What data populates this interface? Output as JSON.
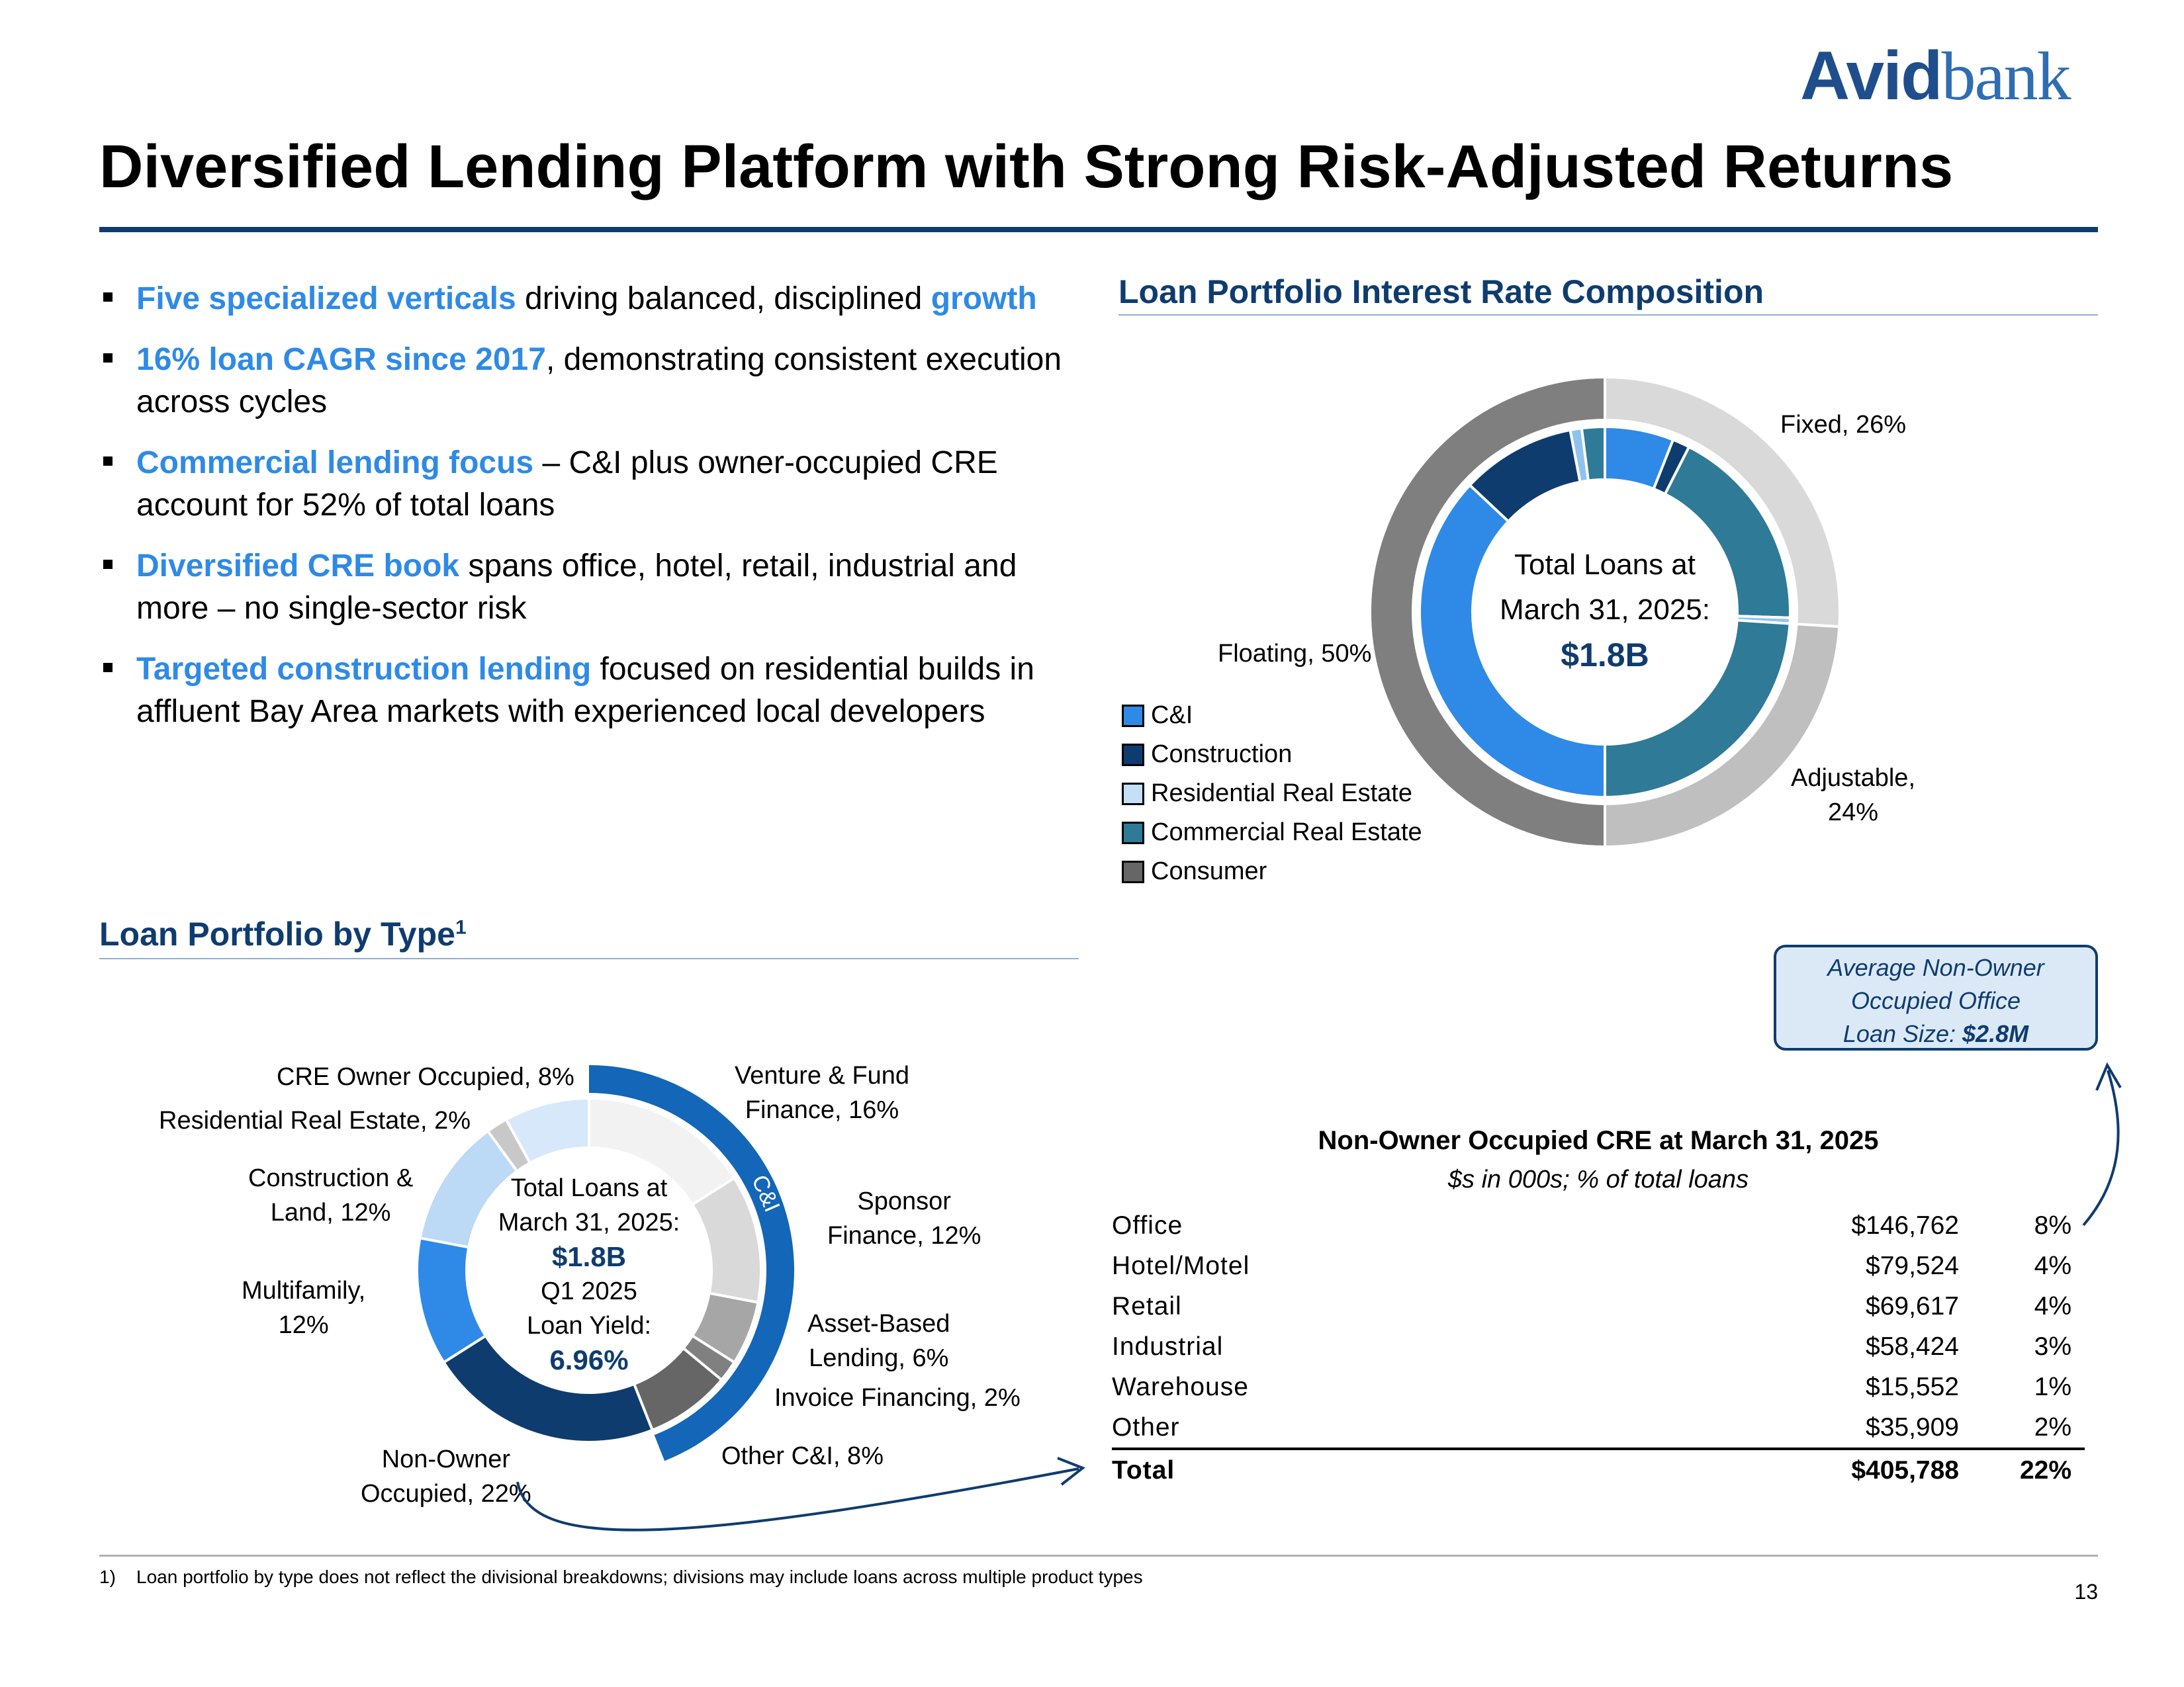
{
  "logo": {
    "part1": "Avid",
    "part2": "bank"
  },
  "title": "Diversified Lending Platform with Strong Risk-Adjusted Returns",
  "bullets": [
    {
      "hl": "Five specialized verticals",
      "text": " driving balanced, disciplined ",
      "hl2": "growth"
    },
    {
      "hl": "16% loan CAGR since 2017",
      "text": ", demonstrating consistent execution across cycles"
    },
    {
      "hl": "Commercial lending focus",
      "text": " – C&I plus owner-occupied CRE account for 52% of total loans"
    },
    {
      "hl": "Diversified CRE book",
      "text": " spans office, hotel, retail, industrial and more – no single-sector risk"
    },
    {
      "hl": "Targeted construction lending",
      "text": " focused on residential builds in affluent Bay Area markets with experienced local developers"
    }
  ],
  "rate_section": {
    "title": "Loan Portfolio Interest Rate Composition",
    "center_line1": "Total Loans at",
    "center_line2": "March 31, 2025:",
    "center_value": "$1.8B",
    "labels": {
      "fixed": "Fixed, 26%",
      "adjustable": "Adjustable,",
      "adjustable_pct": "24%",
      "floating": "Floating, 50%"
    },
    "legend": [
      {
        "label": "C&I",
        "color": "#2e8ae6"
      },
      {
        "label": "Construction",
        "color": "#0f3c6f"
      },
      {
        "label": "Residential Real Estate",
        "color": "#c5dff7"
      },
      {
        "label": "Commercial Real Estate",
        "color": "#2f7a96"
      },
      {
        "label": "Consumer",
        "color": "#666666"
      }
    ]
  },
  "type_section": {
    "title": "Loan Portfolio by Type",
    "superscript": "1",
    "center_line1": "Total Loans at",
    "center_line2": "March 31, 2025:",
    "center_value": "$1.8B",
    "center_line3": "Q1 2025",
    "center_line4": "Loan Yield:",
    "center_yield": "6.96%",
    "ci_label": "C&I"
  },
  "callout": {
    "line1": "Average Non-Owner",
    "line2": "Occupied Office",
    "line3": "Loan Size: ",
    "value": "$2.8M"
  },
  "table": {
    "title": "Non-Owner Occupied CRE at March 31, 2025",
    "subtitle": "$s in 000s; % of total loans",
    "rows": [
      {
        "name": "Office",
        "amount": "$146,762",
        "pct": "8%"
      },
      {
        "name": "Hotel/Motel",
        "amount": "$79,524",
        "pct": "4%"
      },
      {
        "name": "Retail",
        "amount": "$69,617",
        "pct": "4%"
      },
      {
        "name": "Industrial",
        "amount": "$58,424",
        "pct": "3%"
      },
      {
        "name": "Warehouse",
        "amount": "$15,552",
        "pct": "1%"
      },
      {
        "name": "Other",
        "amount": "$35,909",
        "pct": "2%"
      }
    ],
    "total": {
      "name": "Total",
      "amount": "$405,788",
      "pct": "22%"
    }
  },
  "footnote": "1)    Loan portfolio by type does not reflect the divisional breakdowns; divisions may include loans across multiple product types",
  "page_number": "13",
  "chart_data": [
    {
      "type": "pie",
      "title": "Loan Portfolio Interest Rate Composition",
      "variant": "nested-donut",
      "outer_ring": {
        "categories": [
          "Fixed",
          "Adjustable",
          "Floating"
        ],
        "values": [
          26,
          24,
          50
        ],
        "colors": [
          "#d9d9d9",
          "#bfbfbf",
          "#7f7f7f"
        ]
      },
      "inner_ring": {
        "segments": [
          {
            "rate": "Fixed",
            "category": "C&I",
            "value": 6,
            "color": "#2e8ae6"
          },
          {
            "rate": "Fixed",
            "category": "Construction",
            "value": 1.5,
            "color": "#0f3c6f"
          },
          {
            "rate": "Fixed",
            "category": "Commercial Real Estate",
            "value": 18,
            "color": "#2f7a96"
          },
          {
            "rate": "Fixed",
            "category": "Residential Real Estate",
            "value": 0.5,
            "color": "#8ec3f0"
          },
          {
            "rate": "Adjustable",
            "category": "Commercial Real Estate",
            "value": 24,
            "color": "#2f7a96"
          },
          {
            "rate": "Floating",
            "category": "C&I",
            "value": 37,
            "color": "#2e8ae6"
          },
          {
            "rate": "Floating",
            "category": "Construction",
            "value": 10,
            "color": "#0f3c6f"
          },
          {
            "rate": "Floating",
            "category": "Residential Real Estate",
            "value": 1,
            "color": "#8ec3f0"
          },
          {
            "rate": "Floating",
            "category": "Commercial Real Estate",
            "value": 2,
            "color": "#2f7a96"
          }
        ]
      }
    },
    {
      "type": "pie",
      "title": "Loan Portfolio by Type",
      "variant": "donut",
      "categories": [
        "Venture & Fund Finance",
        "Sponsor Finance",
        "Asset-Based Lending",
        "Invoice Financing",
        "Other C&I",
        "Non-Owner Occupied",
        "Multifamily",
        "Construction & Land",
        "Residential Real Estate",
        "CRE Owner Occupied"
      ],
      "values": [
        16,
        12,
        6,
        2,
        8,
        22,
        12,
        12,
        2,
        8
      ],
      "labels": [
        "Venture & Fund Finance, 16%",
        "Sponsor Finance, 12%",
        "Asset-Based Lending, 6%",
        "Invoice Financing, 2%",
        "Other C&I, 8%",
        "Non-Owner Occupied, 22%",
        "Multifamily, 12%",
        "Construction & Land, 12%",
        "Residential Real Estate, 2%",
        "CRE Owner Occupied, 8%"
      ],
      "colors": [
        "#f2f2f2",
        "#d9d9d9",
        "#a6a6a6",
        "#808080",
        "#666666",
        "#0f3c6f",
        "#2e8ae6",
        "#bcd9f5",
        "#c8c8c8",
        "#d6e8fa"
      ],
      "outer_arc": {
        "label": "C&I",
        "value": 44,
        "color": "#1366b8"
      }
    }
  ]
}
